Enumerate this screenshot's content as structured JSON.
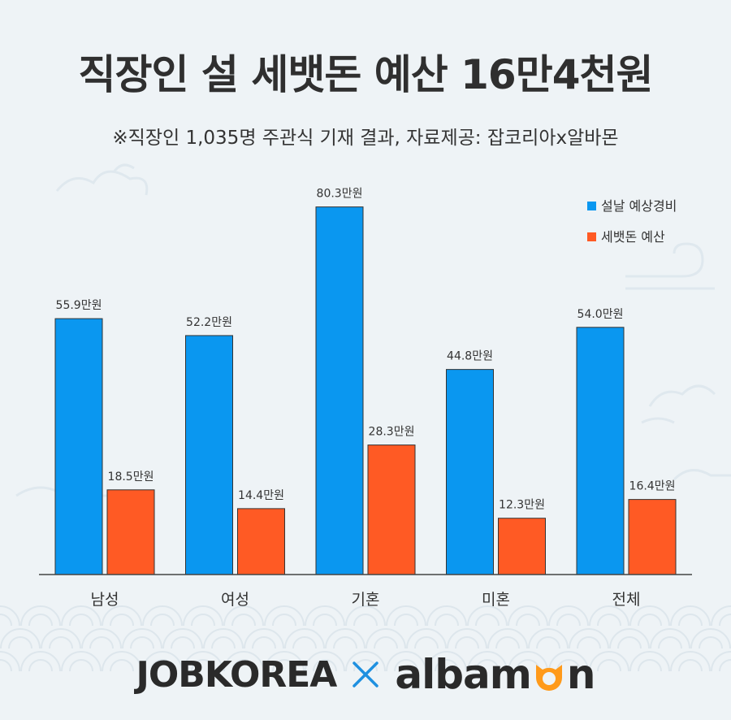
{
  "header": {
    "title": "직장인 설 세뱃돈 예산 16만4천원",
    "subtitle": "※직장인 1,035명 주관식 기재 결과, 자료제공: 잡코리아x알바몬"
  },
  "colors": {
    "blue": "#0a97f0",
    "orange": "#ff5a24",
    "axis": "#444444"
  },
  "chart_data": {
    "type": "bar",
    "categories": [
      "남성",
      "여성",
      "기혼",
      "미혼",
      "전체"
    ],
    "series": [
      {
        "name": "설날 예상경비",
        "values": [
          55.9,
          52.2,
          80.3,
          44.8,
          54.0
        ],
        "labels": [
          "55.9만원",
          "52.2만원",
          "80.3만원",
          "44.8만원",
          "54.0만원"
        ],
        "color": "#0a97f0"
      },
      {
        "name": "세뱃돈 예산",
        "values": [
          18.5,
          14.4,
          28.3,
          12.3,
          16.4
        ],
        "labels": [
          "18.5만원",
          "14.4만원",
          "28.3만원",
          "12.3만원",
          "16.4만원"
        ],
        "color": "#ff5a24"
      }
    ],
    "ylim": [
      0,
      90
    ],
    "grid": false,
    "legend": "top-right"
  },
  "footer": {
    "logo_left": "JOBKOREA",
    "logo_right_a": "alba",
    "logo_right_m": "m",
    "logo_right_n": "n",
    "icons": {
      "x": "x-mark-icon",
      "cat": "cat-face-icon"
    }
  }
}
